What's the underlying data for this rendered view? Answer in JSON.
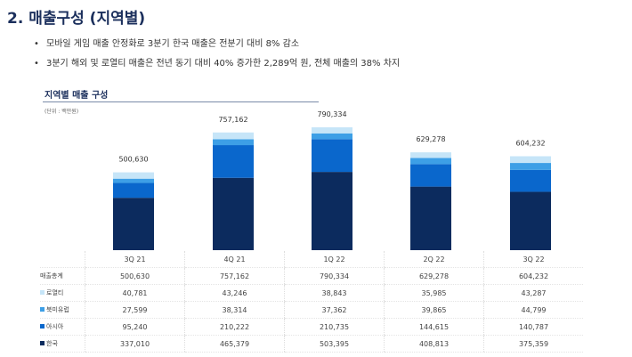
{
  "title": "2. 매출구성 (지역별)",
  "bullets": [
    "모바일 게임 매출 안정화로 3분기 한국 매출은 전분기 대비 8% 감소",
    "3분기 해외 및 로열티 매출은 전년 동기 대비 40% 증가한 2,289억 원, 전체 매출의 38% 차지"
  ],
  "chart_data": {
    "type": "bar",
    "stacked": true,
    "title": "지역별 매출 구성",
    "unit": "(단위 : 백만원)",
    "categories": [
      "3Q 21",
      "4Q 21",
      "1Q 22",
      "2Q 22",
      "3Q 22"
    ],
    "totals_label": "매출총계",
    "totals": [
      "500,630",
      "757,162",
      "790,334",
      "629,278",
      "604,232"
    ],
    "series": [
      {
        "name": "로열티",
        "color": "#c6e5f8",
        "values": [
          40781,
          43246,
          38843,
          35985,
          43287
        ],
        "labels": [
          "40,781",
          "43,246",
          "38,843",
          "35,985",
          "43,287"
        ]
      },
      {
        "name": "북미유럽",
        "color": "#3d9fe6",
        "values": [
          27599,
          38314,
          37362,
          39865,
          44799
        ],
        "labels": [
          "27,599",
          "38,314",
          "37,362",
          "39,865",
          "44,799"
        ]
      },
      {
        "name": "아시아",
        "color": "#0a67cc",
        "values": [
          95240,
          210222,
          210735,
          144615,
          140787
        ],
        "labels": [
          "95,240",
          "210,222",
          "210,735",
          "144,615",
          "140,787"
        ]
      },
      {
        "name": "한국",
        "color": "#0c2b5e",
        "values": [
          337010,
          465379,
          503395,
          408813,
          375359
        ],
        "labels": [
          "337,010",
          "465,379",
          "503,395",
          "408,813",
          "375,359"
        ]
      }
    ]
  }
}
